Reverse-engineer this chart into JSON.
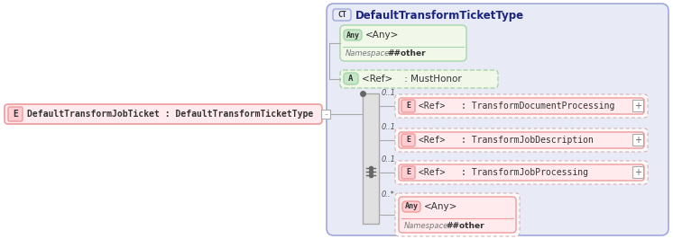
{
  "bg_color": "#ffffff",
  "main_bg": "#e8eaf6",
  "main_border": "#9fa8da",
  "left_box_text": "DefaultTransformJobTicket : DefaultTransformTicketType",
  "left_box_bg": "#ffebee",
  "left_box_border": "#ef9a9a",
  "left_box_label": "E",
  "left_box_label_bg": "#ffcdd2",
  "ct_box_title": "DefaultTransformTicketType",
  "ct_label": "CT",
  "ct_label_bg": "#e8eaf6",
  "ct_label_border": "#9fa8da",
  "any_top_label": "Any",
  "any_top_text": "<Any>",
  "any_top_namespace": "##other",
  "any_top_bg": "#f1f8e9",
  "any_top_border": "#a5d6a7",
  "attr_label": "A",
  "attr_text": "<Ref>    : MustHonor",
  "attr_bg": "#f1f8e9",
  "attr_border": "#a5d6a7",
  "sequence_bg": "#e0e0e0",
  "sequence_border": "#aaaaaa",
  "elements": [
    {
      "label": "E",
      "text": "<Ref>   : TransformDocumentProcessing",
      "multiplicity": "0..1"
    },
    {
      "label": "E",
      "text": "<Ref>   : TransformJobDescription",
      "multiplicity": "0..1"
    },
    {
      "label": "E",
      "text": "<Ref>   : TransformJobProcessing",
      "multiplicity": "0..1"
    }
  ],
  "elem_bg": "#ffebee",
  "elem_border": "#ef9a9a",
  "elem_label_bg": "#ffcdd2",
  "any_bottom_label": "Any",
  "any_bottom_text": "<Any>",
  "any_bottom_namespace": "##other",
  "any_bottom_multiplicity": "0..*",
  "any_bottom_bg": "#ffebee",
  "any_bottom_border": "#ef9a9a",
  "line_color": "#aaaaaa",
  "mult_color": "#555555",
  "ns_label_color": "#777777",
  "ns_value_color": "#333333"
}
